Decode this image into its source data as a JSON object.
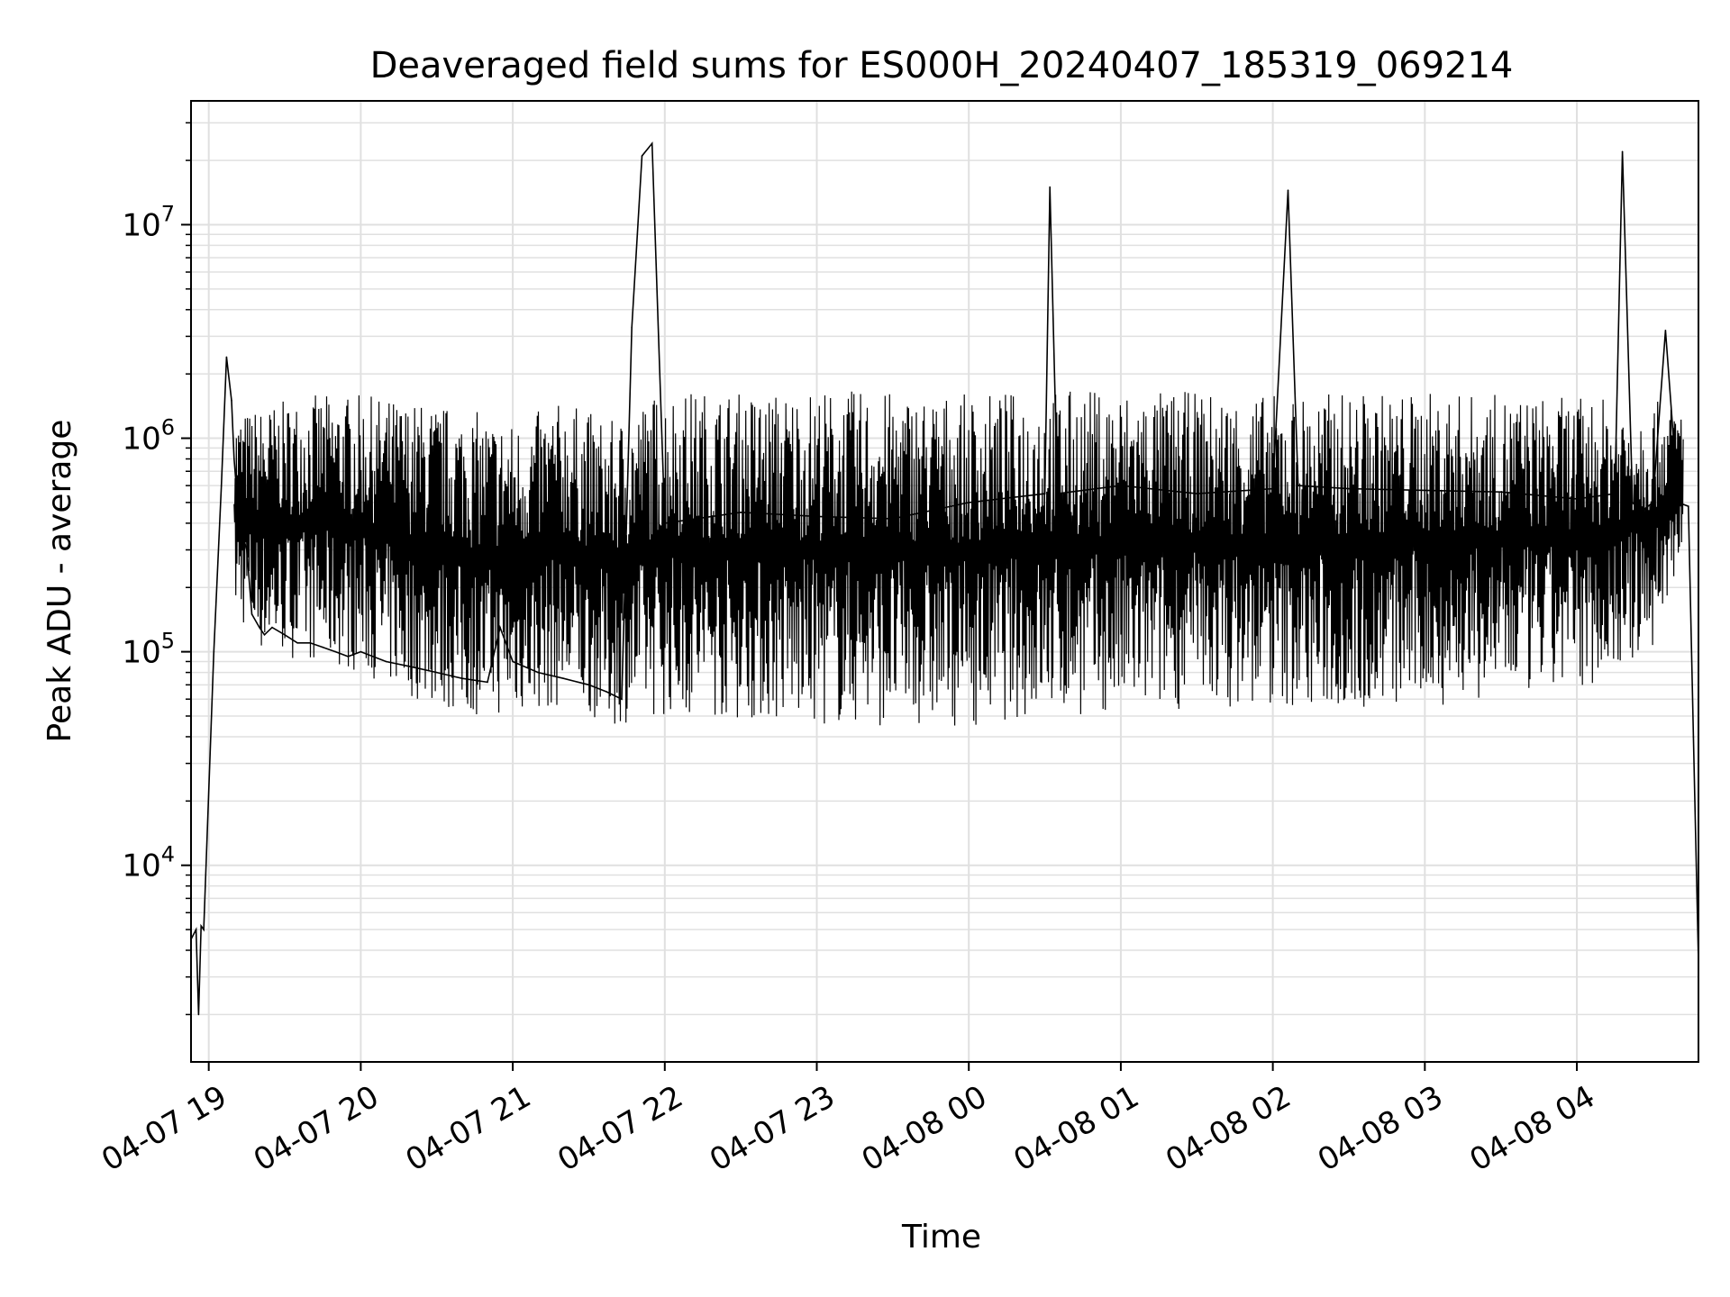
{
  "chart_data": {
    "type": "line",
    "title": "Deaveraged field sums for ES000H_20240407_185319_069214",
    "xlabel": "Time",
    "ylabel": "Peak ADU - average",
    "y_scale": "log",
    "grid": true,
    "grid_minor": true,
    "line_color": "#000000",
    "grid_color": "#e0e0e0",
    "xlim": [
      "2024-04-07 18:53",
      "2024-04-08 04:48"
    ],
    "ylim": [
      1200,
      38000000
    ],
    "x_ticks": [
      {
        "t": "2024-04-07 19:00",
        "label": "04-07 19"
      },
      {
        "t": "2024-04-07 20:00",
        "label": "04-07 20"
      },
      {
        "t": "2024-04-07 21:00",
        "label": "04-07 21"
      },
      {
        "t": "2024-04-07 22:00",
        "label": "04-07 22"
      },
      {
        "t": "2024-04-07 23:00",
        "label": "04-07 23"
      },
      {
        "t": "2024-04-08 00:00",
        "label": "04-08 00"
      },
      {
        "t": "2024-04-08 01:00",
        "label": "04-08 01"
      },
      {
        "t": "2024-04-08 02:00",
        "label": "04-08 02"
      },
      {
        "t": "2024-04-08 03:00",
        "label": "04-08 03"
      },
      {
        "t": "2024-04-08 04:00",
        "label": "04-08 04"
      }
    ],
    "y_ticks": [
      {
        "value": 10000,
        "base": "10",
        "exp": "4"
      },
      {
        "value": 100000,
        "base": "10",
        "exp": "5"
      },
      {
        "value": 1000000,
        "base": "10",
        "exp": "6"
      },
      {
        "value": 10000000,
        "base": "10",
        "exp": "7"
      }
    ],
    "series": [
      {
        "x": [
          "2024-04-07 18:53",
          "2024-04-07 18:55",
          "2024-04-07 18:56",
          "2024-04-07 18:57",
          "2024-04-07 18:58",
          "2024-04-07 19:02",
          "2024-04-07 19:05",
          "2024-04-07 19:07",
          "2024-04-07 19:09",
          "2024-04-07 19:10",
          "2024-04-07 19:12",
          "2024-04-07 19:15",
          "2024-04-07 19:17",
          "2024-04-07 19:20",
          "2024-04-07 19:22",
          "2024-04-07 19:25",
          "2024-04-07 19:30",
          "2024-04-07 19:35",
          "2024-04-07 19:40",
          "2024-04-07 19:45",
          "2024-04-07 19:50",
          "2024-04-07 19:55",
          "2024-04-07 20:00",
          "2024-04-07 20:10",
          "2024-04-07 20:20",
          "2024-04-07 20:30",
          "2024-04-07 20:40",
          "2024-04-07 20:50",
          "2024-04-07 20:55",
          "2024-04-07 21:00",
          "2024-04-07 21:10",
          "2024-04-07 21:20",
          "2024-04-07 21:30",
          "2024-04-07 21:37",
          "2024-04-07 21:43",
          "2024-04-07 21:47",
          "2024-04-07 21:51",
          "2024-04-07 21:55",
          "2024-04-07 22:00",
          "2024-04-07 22:30",
          "2024-04-07 23:00",
          "2024-04-07 23:30",
          "2024-04-08 00:00",
          "2024-04-08 00:30",
          "2024-04-08 00:32",
          "2024-04-08 00:35",
          "2024-04-08 01:00",
          "2024-04-08 01:30",
          "2024-04-08 02:00",
          "2024-04-08 02:06",
          "2024-04-08 02:10",
          "2024-04-08 02:30",
          "2024-04-08 03:00",
          "2024-04-08 03:30",
          "2024-04-08 04:00",
          "2024-04-08 04:15",
          "2024-04-08 04:18",
          "2024-04-08 04:22",
          "2024-04-08 04:25",
          "2024-04-08 04:30",
          "2024-04-08 04:35",
          "2024-04-08 04:40",
          "2024-04-08 04:44",
          "2024-04-08 04:46",
          "2024-04-08 04:48"
        ],
        "y": [
          4500,
          5000,
          2000,
          5200,
          5000,
          100000,
          600000,
          2400000,
          1500000,
          800000,
          400000,
          300000,
          150000,
          130000,
          120000,
          130000,
          120000,
          110000,
          110000,
          105000,
          100000,
          95000,
          100000,
          90000,
          85000,
          80000,
          75000,
          72000,
          130000,
          90000,
          80000,
          75000,
          70000,
          65000,
          60000,
          3300000,
          21000000,
          24000000,
          400000,
          450000,
          430000,
          420000,
          500000,
          550000,
          15000000,
          550000,
          600000,
          550000,
          580000,
          14500000,
          600000,
          580000,
          570000,
          560000,
          520000,
          550000,
          22000000,
          500000,
          450000,
          500000,
          3200000,
          500000,
          480000,
          40000,
          3500
        ]
      }
    ],
    "envelope": {
      "x": [
        "2024-04-07 19:10",
        "2024-04-07 19:20",
        "2024-04-07 19:40",
        "2024-04-07 20:00",
        "2024-04-07 20:20",
        "2024-04-07 20:40",
        "2024-04-07 21:00",
        "2024-04-07 21:20",
        "2024-04-07 21:40",
        "2024-04-07 21:55",
        "2024-04-07 22:00",
        "2024-04-07 22:30",
        "2024-04-07 23:00",
        "2024-04-07 23:30",
        "2024-04-08 00:00",
        "2024-04-08 00:30",
        "2024-04-08 01:00",
        "2024-04-08 01:30",
        "2024-04-08 02:00",
        "2024-04-08 02:30",
        "2024-04-08 03:00",
        "2024-04-08 03:30",
        "2024-04-08 04:00",
        "2024-04-08 04:30",
        "2024-04-08 04:42"
      ],
      "upper": [
        1300000,
        1400000,
        1600000,
        1600000,
        1500000,
        1400000,
        1200000,
        1500000,
        1200000,
        1600000,
        1700000,
        1650000,
        1700000,
        1650000,
        1600000,
        1700000,
        1700000,
        1650000,
        1600000,
        1650000,
        1650000,
        1600000,
        1550000,
        1500000,
        1400000
      ],
      "lower": [
        150000,
        100000,
        90000,
        80000,
        60000,
        50000,
        50000,
        55000,
        45000,
        50000,
        50000,
        48000,
        45000,
        45000,
        45000,
        50000,
        50000,
        55000,
        55000,
        52000,
        55000,
        60000,
        65000,
        100000,
        300000
      ]
    }
  }
}
